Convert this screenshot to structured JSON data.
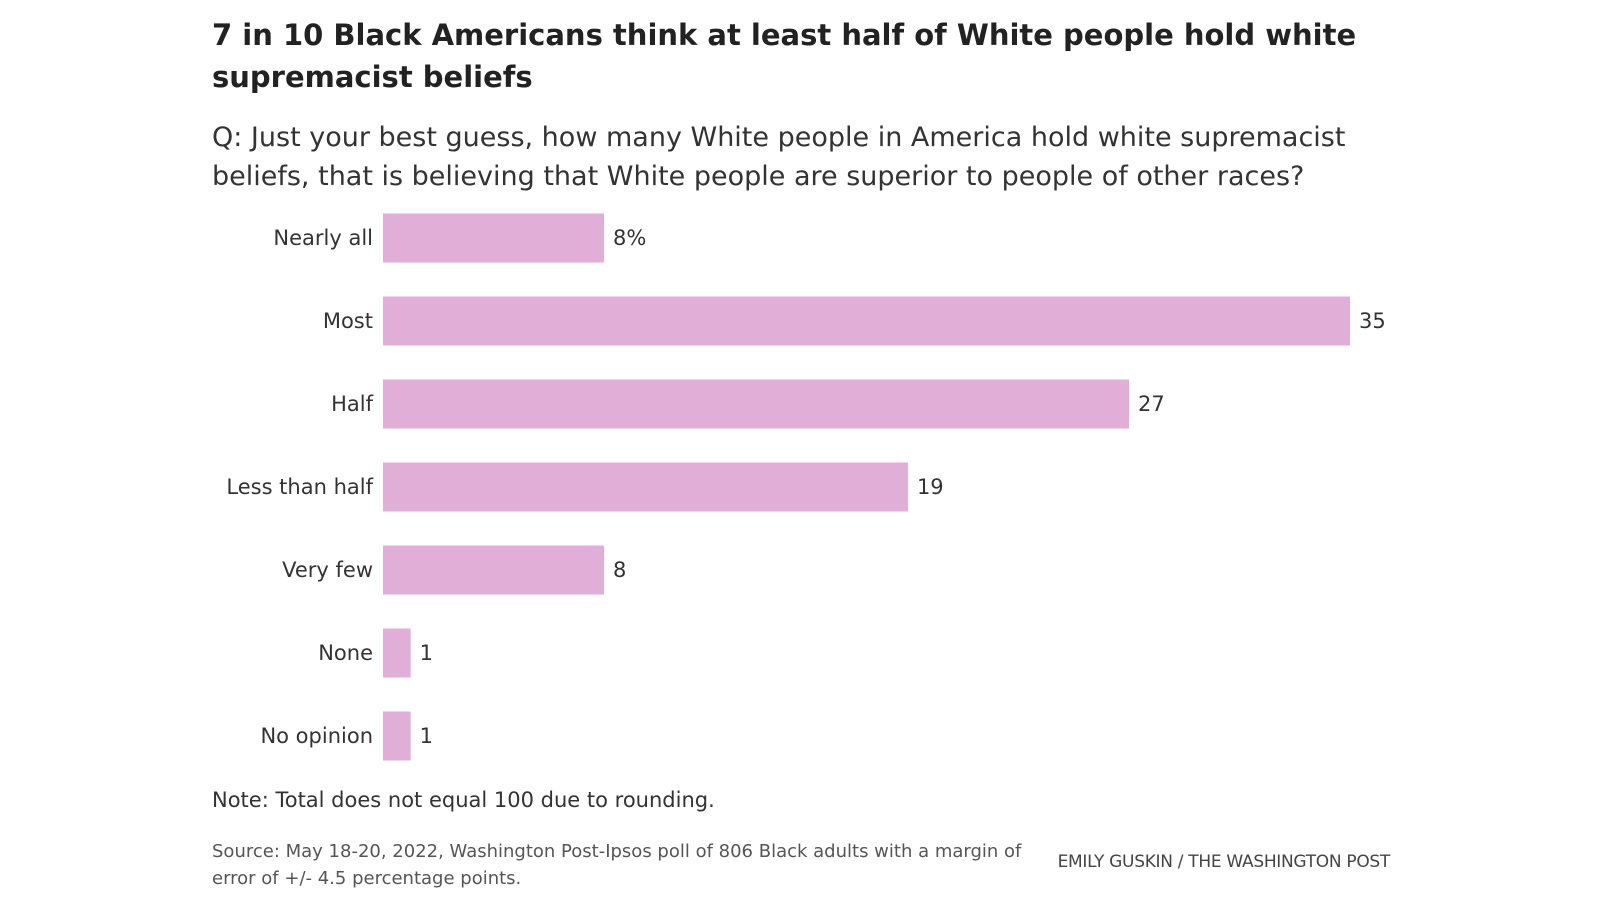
{
  "header": {
    "title": "7 in 10 Black Americans think at least half of White people hold white supremacist beliefs",
    "subtitle": "Q: Just your best guess, how many White people in America hold white supremacist beliefs, that is believing that White people are superior to people of other races?"
  },
  "chart_data": {
    "type": "bar",
    "orientation": "horizontal",
    "categories": [
      "Nearly all",
      "Most",
      "Half",
      "Less than half",
      "Very few",
      "None",
      "No opinion"
    ],
    "values": [
      8,
      35,
      27,
      19,
      8,
      1,
      1
    ],
    "value_labels": [
      "8%",
      "35",
      "27",
      "19",
      "8",
      "1",
      "1"
    ],
    "unit": "%",
    "xlim": [
      0,
      35
    ],
    "grid": false,
    "legend": "none",
    "bar_color": "#e0aed7"
  },
  "footer": {
    "note": "Note: Total does not equal 100 due to rounding.",
    "source": "Source: May 18-20, 2022, Washington Post-Ipsos poll of 806 Black adults with a margin of error of +/- 4.5 percentage points.",
    "credit": "EMILY GUSKIN / THE WASHINGTON POST"
  }
}
